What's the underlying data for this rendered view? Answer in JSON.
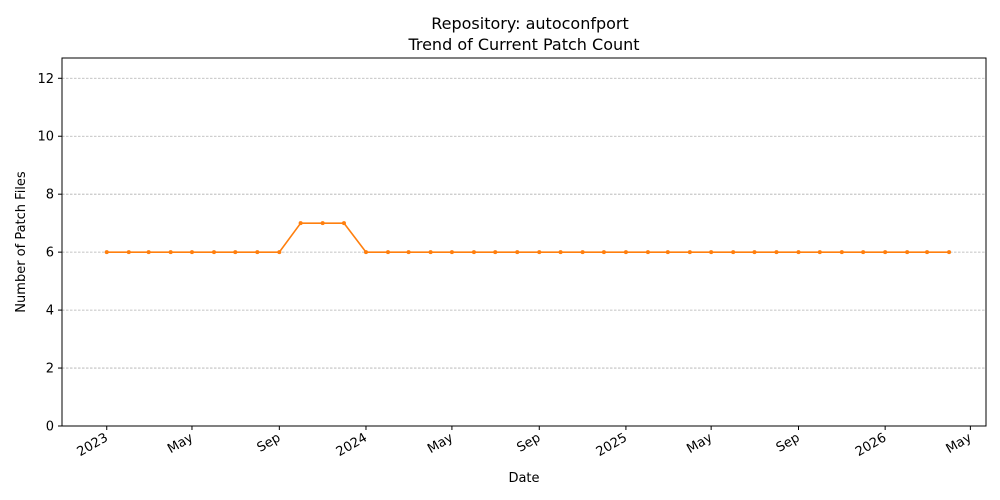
{
  "chart_data": {
    "type": "line",
    "title": "Repository: autoconfport",
    "subtitle": "Trend of Current Patch Count",
    "xlabel": "Date",
    "ylabel": "Number of Patch Files",
    "x_type": "date",
    "xlim": [
      "2022-10-30",
      "2026-05-23"
    ],
    "ylim": [
      0,
      12.7
    ],
    "grid": {
      "y": true,
      "x": false,
      "style": "dashed"
    },
    "line_color": "#ff7f0e",
    "x_ticks": [
      {
        "date": "2023-01-01",
        "label": "2023"
      },
      {
        "date": "2023-05-01",
        "label": "May"
      },
      {
        "date": "2023-09-01",
        "label": "Sep"
      },
      {
        "date": "2024-01-01",
        "label": "2024"
      },
      {
        "date": "2024-05-01",
        "label": "May"
      },
      {
        "date": "2024-09-01",
        "label": "Sep"
      },
      {
        "date": "2025-01-01",
        "label": "2025"
      },
      {
        "date": "2025-05-01",
        "label": "May"
      },
      {
        "date": "2025-09-01",
        "label": "Sep"
      },
      {
        "date": "2026-01-01",
        "label": "2026"
      },
      {
        "date": "2026-05-01",
        "label": "May"
      }
    ],
    "y_ticks": [
      0,
      2,
      4,
      6,
      8,
      10,
      12
    ],
    "series": [
      {
        "x": [
          "2023-01-01",
          "2023-02-01",
          "2023-03-01",
          "2023-04-01",
          "2023-05-01",
          "2023-06-01",
          "2023-07-01",
          "2023-08-01",
          "2023-09-01",
          "2023-10-01",
          "2023-11-01",
          "2023-12-01",
          "2024-01-01",
          "2024-02-01",
          "2024-03-01",
          "2024-04-01",
          "2024-05-01",
          "2024-06-01",
          "2024-07-01",
          "2024-08-01",
          "2024-09-01",
          "2024-10-01",
          "2024-11-01",
          "2024-12-01",
          "2025-01-01",
          "2025-02-01",
          "2025-03-01",
          "2025-04-01",
          "2025-05-01",
          "2025-06-01",
          "2025-07-01",
          "2025-08-01",
          "2025-09-01",
          "2025-10-01",
          "2025-11-01",
          "2025-12-01",
          "2026-01-01",
          "2026-02-01",
          "2026-03-01",
          "2026-04-01"
        ],
        "values": [
          6,
          6,
          6,
          6,
          6,
          6,
          6,
          6,
          6,
          7,
          7,
          7,
          6,
          6,
          6,
          6,
          6,
          6,
          6,
          6,
          6,
          6,
          6,
          6,
          6,
          6,
          6,
          6,
          6,
          6,
          6,
          6,
          6,
          6,
          6,
          6,
          6,
          6,
          6,
          6
        ]
      }
    ]
  }
}
